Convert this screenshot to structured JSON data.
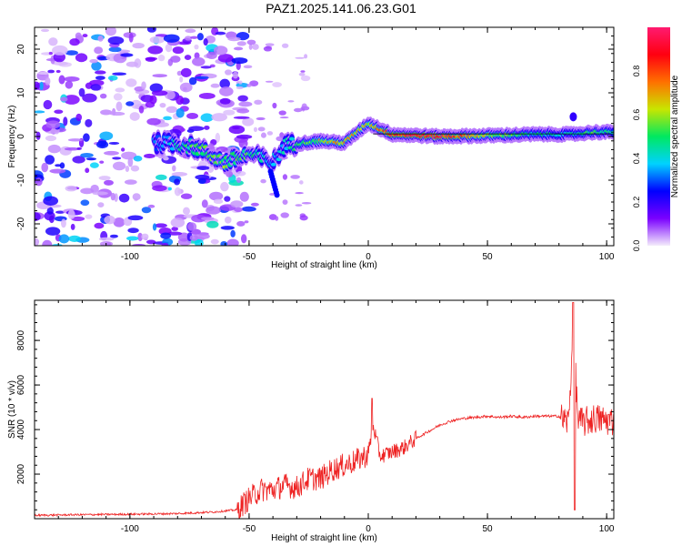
{
  "title": "PAZ1.2025.141.06.23.G01",
  "chart_data": [
    {
      "type": "heatmap",
      "xlabel": "Height of straight line (km)",
      "ylabel": "Frequency (Hz)",
      "xlim": [
        -140,
        103
      ],
      "ylim": [
        -25,
        25
      ],
      "x_ticks": [
        -100,
        -50,
        0,
        50,
        100
      ],
      "y_ticks": [
        -20,
        -10,
        0,
        10,
        20
      ],
      "colorbar": {
        "label": "Normalized spectral amplitude",
        "range": [
          0,
          1
        ],
        "ticks": [
          0.0,
          0.2,
          0.4,
          0.6,
          0.8
        ],
        "colors": [
          "#f4ecfb",
          "#7a00ff",
          "#0000ff",
          "#00d2ff",
          "#00e860",
          "#c8e600",
          "#ff7000",
          "#ff0010",
          "#ff1a70"
        ]
      },
      "ridge": [
        {
          "x": -90,
          "y": -1.5,
          "a": 0.3
        },
        {
          "x": -80,
          "y": -1.5,
          "a": 0.45
        },
        {
          "x": -70,
          "y": -3,
          "a": 0.5
        },
        {
          "x": -60,
          "y": -6,
          "a": 0.55
        },
        {
          "x": -50,
          "y": -4,
          "a": 0.5
        },
        {
          "x": -40,
          "y": -6,
          "a": 0.35
        },
        {
          "x": -35,
          "y": -2,
          "a": 0.4
        },
        {
          "x": -20,
          "y": -1,
          "a": 0.6
        },
        {
          "x": -10,
          "y": -1.5,
          "a": 0.7
        },
        {
          "x": 0,
          "y": 3,
          "a": 0.6
        },
        {
          "x": 10,
          "y": 0.5,
          "a": 0.85
        },
        {
          "x": 30,
          "y": 0,
          "a": 0.9
        },
        {
          "x": 50,
          "y": 0.2,
          "a": 0.6
        },
        {
          "x": 70,
          "y": 0.5,
          "a": 0.45
        },
        {
          "x": 85,
          "y": 0.5,
          "a": 0.4
        },
        {
          "x": 95,
          "y": 1,
          "a": 0.5
        },
        {
          "x": 103,
          "y": 1,
          "a": 0.45
        }
      ]
    },
    {
      "type": "line",
      "xlabel": "Height of straight line (km)",
      "ylabel": "SNR (10 * v/v)",
      "xlim": [
        -140,
        103
      ],
      "ylim": [
        0,
        9800
      ],
      "x_ticks": [
        -100,
        -50,
        0,
        50,
        100
      ],
      "y_ticks": [
        2000,
        4000,
        6000,
        8000
      ],
      "color": "#ee2222",
      "series": [
        {
          "x": [
            -140,
            -120,
            -100,
            -80,
            -65,
            -55,
            -50,
            -45,
            -40,
            -35,
            -30,
            -25,
            -20,
            -15,
            -10,
            -5,
            0,
            2,
            5,
            10,
            15,
            20,
            25,
            30,
            35,
            40,
            45,
            50,
            55,
            60,
            65,
            70,
            75,
            80,
            84,
            86,
            88,
            90,
            95,
            100,
            103
          ],
          "values": [
            150,
            180,
            200,
            230,
            300,
            400,
            900,
            1300,
            1300,
            1500,
            1400,
            1800,
            1800,
            2200,
            2400,
            2600,
            2900,
            4200,
            2800,
            3000,
            3200,
            3600,
            3900,
            4200,
            4400,
            4500,
            4550,
            4600,
            4550,
            4600,
            4550,
            4600,
            4600,
            4600,
            4300,
            8500,
            4400,
            4300,
            4500,
            4400,
            4400
          ]
        }
      ]
    }
  ]
}
